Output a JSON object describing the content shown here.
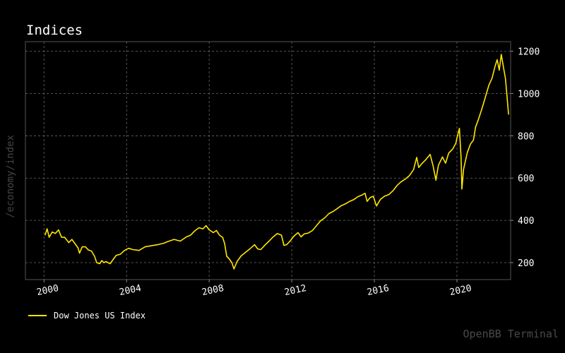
{
  "title": "Indices",
  "watermarks": {
    "side": "/economy/index",
    "corner": "OpenBB Terminal"
  },
  "colors": {
    "background": "#000000",
    "line": "#ffe600",
    "grid": "#666666",
    "axes": "#555555"
  },
  "chart_data": {
    "type": "line",
    "title": "Indices",
    "xlabel": "",
    "ylabel": "",
    "xlim": [
      1999.1,
      2022.6
    ],
    "ylim": [
      120,
      1245
    ],
    "x_ticks": [
      2000,
      2004,
      2008,
      2012,
      2016,
      2020
    ],
    "x_tick_labels": [
      "2000",
      "2004",
      "2008",
      "2012",
      "2016",
      "2020"
    ],
    "y_ticks": [
      200,
      400,
      600,
      800,
      1000,
      1200
    ],
    "y_tick_labels": [
      "200",
      "400",
      "600",
      "800",
      "1000",
      "1200"
    ],
    "y_axis_side": "right",
    "grid": true,
    "legend_position": "bottom-left",
    "series": [
      {
        "name": "Dow Jones US Index",
        "color": "#ffe600",
        "points": [
          [
            2000.05,
            330
          ],
          [
            2000.15,
            360
          ],
          [
            2000.25,
            320
          ],
          [
            2000.4,
            345
          ],
          [
            2000.55,
            338
          ],
          [
            2000.7,
            355
          ],
          [
            2000.85,
            320
          ],
          [
            2001.0,
            320
          ],
          [
            2001.2,
            295
          ],
          [
            2001.35,
            310
          ],
          [
            2001.5,
            290
          ],
          [
            2001.65,
            270
          ],
          [
            2001.72,
            245
          ],
          [
            2001.85,
            275
          ],
          [
            2002.0,
            275
          ],
          [
            2002.15,
            260
          ],
          [
            2002.3,
            255
          ],
          [
            2002.45,
            230
          ],
          [
            2002.55,
            200
          ],
          [
            2002.7,
            195
          ],
          [
            2002.8,
            210
          ],
          [
            2002.9,
            200
          ],
          [
            2003.0,
            205
          ],
          [
            2003.2,
            195
          ],
          [
            2003.35,
            215
          ],
          [
            2003.5,
            235
          ],
          [
            2003.7,
            240
          ],
          [
            2003.9,
            258
          ],
          [
            2004.1,
            268
          ],
          [
            2004.3,
            262
          ],
          [
            2004.6,
            258
          ],
          [
            2004.9,
            275
          ],
          [
            2005.2,
            280
          ],
          [
            2005.5,
            285
          ],
          [
            2005.8,
            292
          ],
          [
            2006.0,
            300
          ],
          [
            2006.3,
            310
          ],
          [
            2006.6,
            302
          ],
          [
            2006.9,
            322
          ],
          [
            2007.1,
            330
          ],
          [
            2007.3,
            350
          ],
          [
            2007.5,
            365
          ],
          [
            2007.7,
            360
          ],
          [
            2007.85,
            375
          ],
          [
            2008.0,
            355
          ],
          [
            2008.2,
            342
          ],
          [
            2008.35,
            352
          ],
          [
            2008.5,
            330
          ],
          [
            2008.65,
            320
          ],
          [
            2008.75,
            290
          ],
          [
            2008.85,
            230
          ],
          [
            2008.95,
            220
          ],
          [
            2009.1,
            200
          ],
          [
            2009.2,
            170
          ],
          [
            2009.35,
            205
          ],
          [
            2009.55,
            232
          ],
          [
            2009.75,
            248
          ],
          [
            2010.0,
            268
          ],
          [
            2010.2,
            285
          ],
          [
            2010.35,
            265
          ],
          [
            2010.5,
            262
          ],
          [
            2010.7,
            283
          ],
          [
            2010.9,
            302
          ],
          [
            2011.1,
            322
          ],
          [
            2011.3,
            338
          ],
          [
            2011.5,
            330
          ],
          [
            2011.62,
            282
          ],
          [
            2011.75,
            285
          ],
          [
            2011.9,
            300
          ],
          [
            2012.1,
            325
          ],
          [
            2012.3,
            342
          ],
          [
            2012.45,
            322
          ],
          [
            2012.6,
            336
          ],
          [
            2012.8,
            340
          ],
          [
            2013.0,
            352
          ],
          [
            2013.2,
            375
          ],
          [
            2013.4,
            398
          ],
          [
            2013.6,
            412
          ],
          [
            2013.8,
            432
          ],
          [
            2014.0,
            442
          ],
          [
            2014.2,
            455
          ],
          [
            2014.4,
            470
          ],
          [
            2014.6,
            478
          ],
          [
            2014.8,
            490
          ],
          [
            2015.0,
            498
          ],
          [
            2015.2,
            512
          ],
          [
            2015.4,
            520
          ],
          [
            2015.55,
            528
          ],
          [
            2015.65,
            490
          ],
          [
            2015.8,
            508
          ],
          [
            2015.95,
            514
          ],
          [
            2016.1,
            468
          ],
          [
            2016.3,
            500
          ],
          [
            2016.5,
            515
          ],
          [
            2016.7,
            522
          ],
          [
            2016.9,
            540
          ],
          [
            2017.1,
            565
          ],
          [
            2017.3,
            583
          ],
          [
            2017.5,
            595
          ],
          [
            2017.7,
            612
          ],
          [
            2017.9,
            640
          ],
          [
            2018.05,
            698
          ],
          [
            2018.15,
            650
          ],
          [
            2018.3,
            668
          ],
          [
            2018.5,
            688
          ],
          [
            2018.7,
            712
          ],
          [
            2018.85,
            655
          ],
          [
            2018.98,
            590
          ],
          [
            2019.1,
            660
          ],
          [
            2019.3,
            700
          ],
          [
            2019.45,
            670
          ],
          [
            2019.6,
            718
          ],
          [
            2019.8,
            738
          ],
          [
            2019.95,
            765
          ],
          [
            2020.0,
            790
          ],
          [
            2020.12,
            835
          ],
          [
            2020.2,
            700
          ],
          [
            2020.24,
            548
          ],
          [
            2020.32,
            640
          ],
          [
            2020.5,
            720
          ],
          [
            2020.65,
            760
          ],
          [
            2020.8,
            780
          ],
          [
            2020.9,
            840
          ],
          [
            2021.05,
            880
          ],
          [
            2021.2,
            925
          ],
          [
            2021.4,
            990
          ],
          [
            2021.55,
            1040
          ],
          [
            2021.7,
            1072
          ],
          [
            2021.85,
            1130
          ],
          [
            2021.95,
            1160
          ],
          [
            2022.05,
            1110
          ],
          [
            2022.15,
            1185
          ],
          [
            2022.25,
            1125
          ],
          [
            2022.35,
            1070
          ],
          [
            2022.45,
            960
          ],
          [
            2022.5,
            900
          ]
        ]
      }
    ]
  }
}
